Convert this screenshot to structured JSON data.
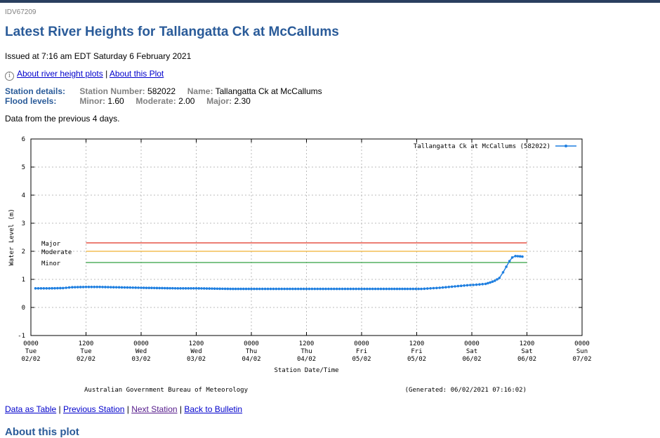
{
  "product_id": "IDV67209",
  "title": "Latest River Heights for Tallangatta Ck at McCallums",
  "issued": "Issued at 7:16 am EDT Saturday 6 February 2021",
  "top_links": {
    "about_plots": "About river height plots",
    "separator": "|",
    "about_this": "About this Plot"
  },
  "station": {
    "details_label": "Station details:",
    "number_key": "Station Number:",
    "number": "582022",
    "name_key": "Name:",
    "name": "Tallangatta Ck at McCallums"
  },
  "flood": {
    "label": "Flood levels:",
    "minor_key": "Minor:",
    "minor": "1.60",
    "moderate_key": "Moderate:",
    "moderate": "2.00",
    "major_key": "Major:",
    "major": "2.30"
  },
  "data_note": "Data from the previous 4 days.",
  "bottom_links": {
    "table": "Data as Table",
    "prev": "Previous Station",
    "next": "Next Station",
    "back": "Back to Bulletin",
    "separator": "|"
  },
  "about_heading": "About this plot",
  "colors": {
    "series": "#1f7fe0",
    "major": "#e03020",
    "moderate": "#f0b030",
    "minor": "#30a040",
    "title": "#2a5b99"
  },
  "chart_data": {
    "type": "line",
    "xlabel": "Station Date/Time",
    "ylabel": "Water Level (m)",
    "ylim": [
      -1,
      6
    ],
    "y_ticks": [
      "-1",
      "0",
      "1",
      "2",
      "3",
      "4",
      "5",
      "6"
    ],
    "xlim": [
      0,
      120
    ],
    "x_unit": "hours since 0000 Tue 02/02",
    "x_ticks": [
      {
        "line1": "0000",
        "line2": "Tue",
        "line3": "02/02"
      },
      {
        "line1": "1200",
        "line2": "Tue",
        "line3": "02/02"
      },
      {
        "line1": "0000",
        "line2": "Wed",
        "line3": "03/02"
      },
      {
        "line1": "1200",
        "line2": "Wed",
        "line3": "03/02"
      },
      {
        "line1": "0000",
        "line2": "Thu",
        "line3": "04/02"
      },
      {
        "line1": "1200",
        "line2": "Thu",
        "line3": "04/02"
      },
      {
        "line1": "0000",
        "line2": "Fri",
        "line3": "05/02"
      },
      {
        "line1": "1200",
        "line2": "Fri",
        "line3": "05/02"
      },
      {
        "line1": "0000",
        "line2": "Sat",
        "line3": "06/02"
      },
      {
        "line1": "1200",
        "line2": "Sat",
        "line3": "06/02"
      },
      {
        "line1": "0000",
        "line2": "Sun",
        "line3": "07/02"
      }
    ],
    "grid": true,
    "legend": "top-right",
    "thresholds": [
      {
        "name": "Major",
        "value": 2.3,
        "x_from": 12,
        "x_to": 108
      },
      {
        "name": "Moderate",
        "value": 2.0,
        "x_from": 12,
        "x_to": 108
      },
      {
        "name": "Minor",
        "value": 1.6,
        "x_from": 12,
        "x_to": 108
      }
    ],
    "series": [
      {
        "name": "Tallangatta Ck at McCallums (582022)",
        "points": [
          [
            1,
            0.68
          ],
          [
            4,
            0.68
          ],
          [
            7,
            0.69
          ],
          [
            9,
            0.72
          ],
          [
            12,
            0.73
          ],
          [
            15,
            0.73
          ],
          [
            18,
            0.72
          ],
          [
            21,
            0.71
          ],
          [
            24,
            0.7
          ],
          [
            28,
            0.69
          ],
          [
            32,
            0.68
          ],
          [
            36,
            0.68
          ],
          [
            40,
            0.67
          ],
          [
            44,
            0.66
          ],
          [
            48,
            0.66
          ],
          [
            54,
            0.66
          ],
          [
            60,
            0.66
          ],
          [
            66,
            0.66
          ],
          [
            72,
            0.66
          ],
          [
            78,
            0.66
          ],
          [
            82,
            0.66
          ],
          [
            85,
            0.66
          ],
          [
            87,
            0.68
          ],
          [
            89,
            0.7
          ],
          [
            91,
            0.73
          ],
          [
            93,
            0.76
          ],
          [
            95,
            0.79
          ],
          [
            97,
            0.81
          ],
          [
            99,
            0.84
          ],
          [
            100,
            0.89
          ],
          [
            101,
            0.95
          ],
          [
            102,
            1.05
          ],
          [
            102.8,
            1.25
          ],
          [
            103.5,
            1.45
          ],
          [
            104.2,
            1.65
          ],
          [
            104.8,
            1.78
          ],
          [
            105.5,
            1.83
          ],
          [
            106.5,
            1.82
          ],
          [
            107,
            1.81
          ]
        ]
      }
    ],
    "footer_left": "Australian Government Bureau of Meteorology",
    "footer_right": "(Generated: 06/02/2021 07:16:02)"
  }
}
